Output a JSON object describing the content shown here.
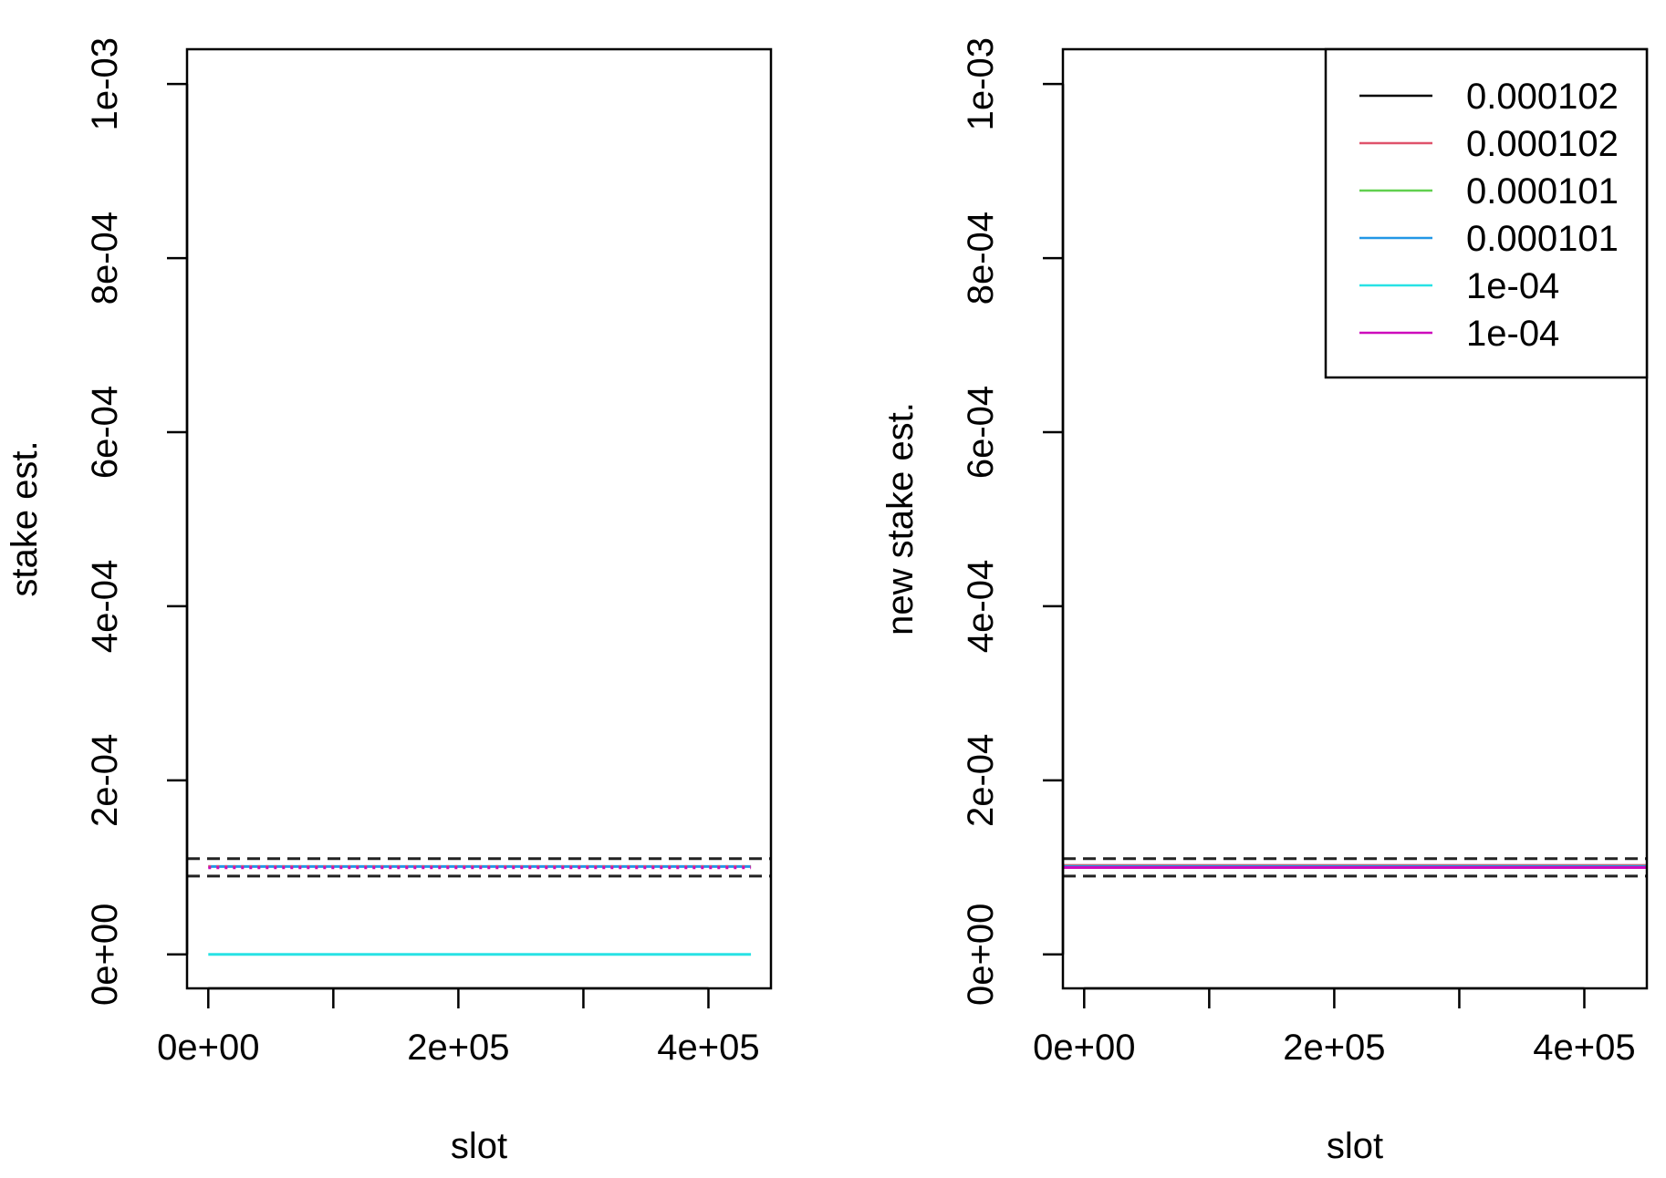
{
  "chart_data": [
    {
      "type": "line",
      "xlabel": "slot",
      "ylabel": "stake est.",
      "xlim": [
        -17000,
        450000
      ],
      "ylim": [
        -3.9e-05,
        0.00104
      ],
      "x_ticks": [
        0,
        100000,
        200000,
        300000,
        400000
      ],
      "x_tick_labels": [
        "0e+00",
        "",
        "2e+05",
        "",
        "4e+05"
      ],
      "y_ticks": [
        0,
        0.0002,
        0.0004,
        0.0006,
        0.0008,
        0.001
      ],
      "y_tick_labels": [
        "0e+00",
        "2e-04",
        "4e-04",
        "6e-04",
        "8e-04",
        "1e-03"
      ],
      "reference_lines": [
        {
          "y": 0.00011,
          "style": "dashed",
          "color": "#222222"
        },
        {
          "y": 9e-05,
          "style": "dashed",
          "color": "#222222"
        }
      ],
      "series": [
        {
          "x": [
            0,
            434000
          ],
          "y": [
            0.000101,
            0.000101
          ],
          "color": "#2297E6"
        },
        {
          "x": [
            0,
            434000
          ],
          "y": [
            0.000101,
            0.000101
          ],
          "color": "#DF536B",
          "style": "dotted"
        },
        {
          "x": [
            0,
            434000
          ],
          "y": [
            9.95e-05,
            9.95e-05
          ],
          "color": "#CD0BBC",
          "style": "dotted"
        },
        {
          "x": [
            0,
            434000
          ],
          "y": [
            0,
            0
          ],
          "color": "#28E2E5"
        }
      ],
      "legend": null
    },
    {
      "type": "line",
      "xlabel": "slot",
      "ylabel": "new stake est.",
      "xlim": [
        -17000,
        450000
      ],
      "ylim": [
        -3.9e-05,
        0.00104
      ],
      "x_ticks": [
        0,
        100000,
        200000,
        300000,
        400000
      ],
      "x_tick_labels": [
        "0e+00",
        "",
        "2e+05",
        "",
        "4e+05"
      ],
      "y_ticks": [
        0,
        0.0002,
        0.0004,
        0.0006,
        0.0008,
        0.001
      ],
      "y_tick_labels": [
        "0e+00",
        "2e-04",
        "4e-04",
        "6e-04",
        "8e-04",
        "1e-03"
      ],
      "reference_lines": [
        {
          "y": 0.00011,
          "style": "dashed",
          "color": "#222222"
        },
        {
          "y": 9e-05,
          "style": "dashed",
          "color": "#222222"
        }
      ],
      "series": [
        {
          "name": "0.000102",
          "x": [
            -17000,
            450000
          ],
          "y": [
            0.000102,
            0.000102
          ],
          "color": "#000000"
        },
        {
          "name": "0.000102",
          "x": [
            -17000,
            450000
          ],
          "y": [
            0.000102,
            0.000102
          ],
          "color": "#DF536B"
        },
        {
          "name": "0.000101",
          "x": [
            -17000,
            450000
          ],
          "y": [
            0.000101,
            0.000101
          ],
          "color": "#61D04F"
        },
        {
          "name": "0.000101",
          "x": [
            -17000,
            450000
          ],
          "y": [
            0.000101,
            0.000101
          ],
          "color": "#2297E6"
        },
        {
          "name": "1e-04",
          "x": [
            -17000,
            450000
          ],
          "y": [
            9.98e-05,
            9.98e-05
          ],
          "color": "#28E2E5"
        },
        {
          "name": "1e-04",
          "x": [
            -17000,
            450000
          ],
          "y": [
            9.98e-05,
            9.98e-05
          ],
          "color": "#CD0BBC"
        }
      ],
      "legend": {
        "position": "top-right"
      }
    }
  ]
}
